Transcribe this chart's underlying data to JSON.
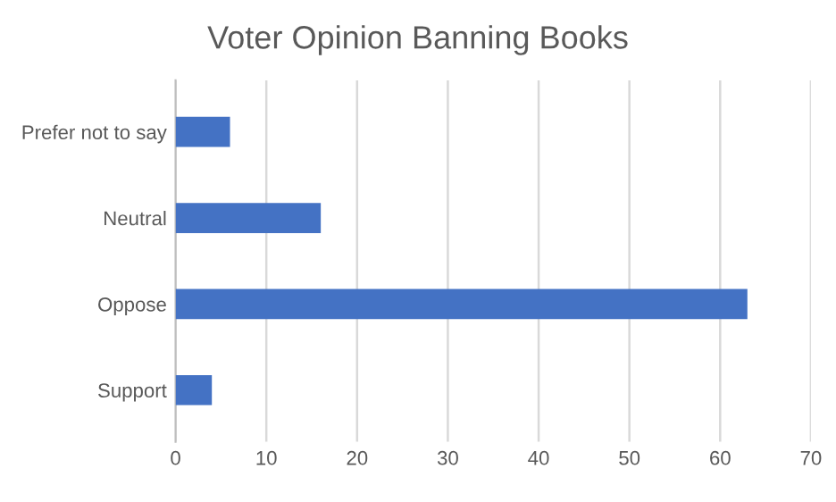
{
  "chart_data": {
    "type": "bar",
    "orientation": "horizontal",
    "title": "Voter Opinion Banning Books",
    "categories": [
      "Prefer not to say",
      "Neutral",
      "Oppose",
      "Support"
    ],
    "values": [
      6,
      16,
      63,
      4
    ],
    "color": "#4472c4",
    "xlim": [
      0,
      70
    ],
    "xticks": [
      0,
      10,
      20,
      30,
      40,
      50,
      60,
      70
    ],
    "grid": "x",
    "legend": false
  }
}
